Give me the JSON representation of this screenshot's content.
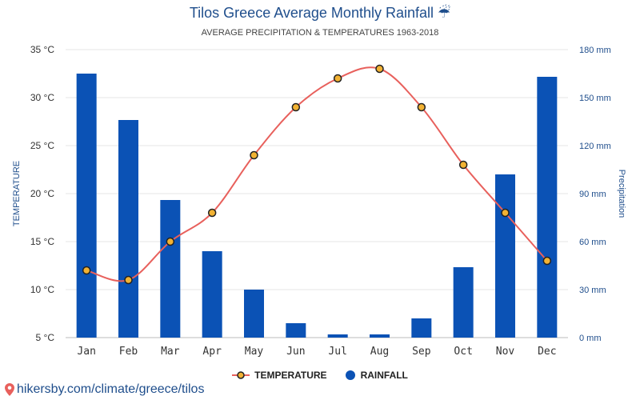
{
  "chart_data": {
    "type": "bar",
    "title": "Tilos Greece Average Monthly Rainfall ☔",
    "subtitle": "AVERAGE PRECIPITATION & TEMPERATURES 1963-2018",
    "categories": [
      "Jan",
      "Feb",
      "Mar",
      "Apr",
      "May",
      "Jun",
      "Jul",
      "Aug",
      "Sep",
      "Oct",
      "Nov",
      "Dec"
    ],
    "series": [
      {
        "name": "TEMPERATURE",
        "type": "line",
        "axis": "left",
        "unit": "°C",
        "color": "#e8605c",
        "marker_color": "#f2b233",
        "values": [
          12,
          11,
          15,
          18,
          24,
          29,
          32,
          33,
          29,
          23,
          18,
          13
        ]
      },
      {
        "name": "RAINFALL",
        "type": "bar",
        "axis": "right",
        "unit": "mm",
        "color": "#0b52b5",
        "values": [
          165,
          136,
          86,
          54,
          30,
          9,
          2,
          2,
          12,
          44,
          102,
          163
        ]
      }
    ],
    "left_axis": {
      "label": "TEMPERATURE",
      "min": 5,
      "max": 35,
      "ticks": [
        "5 °C",
        "10 °C",
        "15 °C",
        "20 °C",
        "25 °C",
        "30 °C",
        "35 °C"
      ]
    },
    "right_axis": {
      "label": "Precipitation",
      "min": 0,
      "max": 180,
      "ticks": [
        "0 mm",
        "30 mm",
        "60 mm",
        "90 mm",
        "120 mm",
        "150 mm",
        "180 mm"
      ]
    },
    "grid": true,
    "legend": "bottom-center"
  },
  "footer": {
    "text": "hikersby.com/climate/greece/tilos",
    "pin_color": "#e8605c"
  }
}
